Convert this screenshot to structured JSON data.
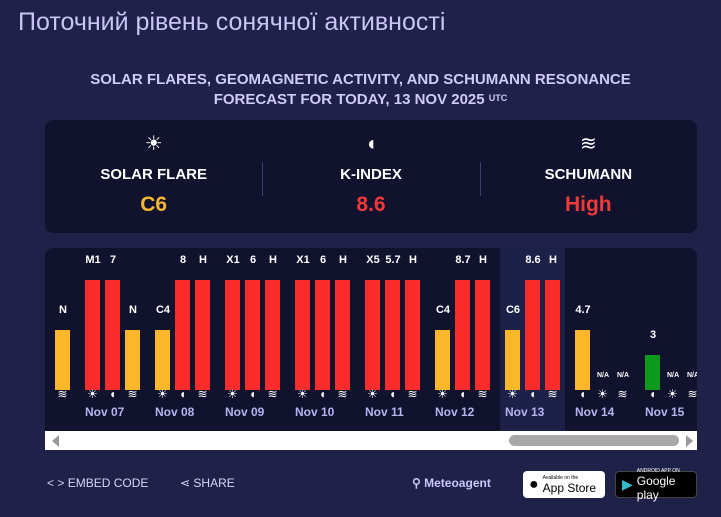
{
  "title": "Поточний рівень сонячної активності",
  "subtitle": {
    "line1": "SOLAR FLARES, GEOMAGNETIC ACTIVITY, AND SCHUMANN RESONANCE",
    "line2": "FORECAST FOR TODAY, 13 NOV 2025",
    "tz": "UTC"
  },
  "colors": {
    "high": "#fb2c2c",
    "medium": "#fbb72a",
    "low": "#0a9a1c",
    "value_yellow": "#f5b731",
    "value_red": "#f03a3a"
  },
  "summary": [
    {
      "icon": "sun-icon",
      "label": "SOLAR FLARE",
      "value": "C6",
      "color": "#f5b731"
    },
    {
      "icon": "magnet-icon",
      "label": "K-INDEX",
      "value": "8.6",
      "color": "#f03a3a"
    },
    {
      "icon": "waves-icon",
      "label": "SCHUMANN",
      "value": "High",
      "color": "#f03a3a"
    }
  ],
  "days": [
    {
      "date": "",
      "bars": [
        {
          "type": "",
          "label": ""
        },
        {
          "type": "",
          "label": ""
        },
        {
          "type": "schumann",
          "label": "N",
          "level": "medium"
        }
      ]
    },
    {
      "date": "Nov 07",
      "bars": [
        {
          "type": "flare",
          "label": "M1",
          "level": "high"
        },
        {
          "type": "kindex",
          "label": "7",
          "level": "high"
        },
        {
          "type": "schumann",
          "label": "N",
          "level": "medium"
        }
      ]
    },
    {
      "date": "Nov 08",
      "bars": [
        {
          "type": "flare",
          "label": "C4",
          "level": "medium"
        },
        {
          "type": "kindex",
          "label": "8",
          "level": "high"
        },
        {
          "type": "schumann",
          "label": "H",
          "level": "high"
        }
      ]
    },
    {
      "date": "Nov 09",
      "bars": [
        {
          "type": "flare",
          "label": "X1",
          "level": "high"
        },
        {
          "type": "kindex",
          "label": "6",
          "level": "high"
        },
        {
          "type": "schumann",
          "label": "H",
          "level": "high"
        }
      ]
    },
    {
      "date": "Nov 10",
      "bars": [
        {
          "type": "flare",
          "label": "X1",
          "level": "high"
        },
        {
          "type": "kindex",
          "label": "6",
          "level": "high"
        },
        {
          "type": "schumann",
          "label": "H",
          "level": "high"
        }
      ]
    },
    {
      "date": "Nov 11",
      "bars": [
        {
          "type": "flare",
          "label": "X5",
          "level": "high"
        },
        {
          "type": "kindex",
          "label": "5.7",
          "level": "high"
        },
        {
          "type": "schumann",
          "label": "H",
          "level": "high"
        }
      ]
    },
    {
      "date": "Nov 12",
      "bars": [
        {
          "type": "flare",
          "label": "C4",
          "level": "medium"
        },
        {
          "type": "kindex",
          "label": "8.7",
          "level": "high"
        },
        {
          "type": "schumann",
          "label": "H",
          "level": "high"
        }
      ]
    },
    {
      "date": "Nov 13",
      "today": true,
      "bars": [
        {
          "type": "flare",
          "label": "C6",
          "level": "medium"
        },
        {
          "type": "kindex",
          "label": "8.6",
          "level": "high"
        },
        {
          "type": "schumann",
          "label": "H",
          "level": "high"
        }
      ]
    },
    {
      "date": "Nov 14",
      "bars": [
        {
          "type": "kindex",
          "label": "4.7",
          "level": "medium"
        },
        {
          "type": "flare",
          "label": "N/A",
          "level": "none"
        },
        {
          "type": "schumann",
          "label": "N/A",
          "level": "none"
        }
      ]
    },
    {
      "date": "Nov 15",
      "bars": [
        {
          "type": "kindex",
          "label": "3",
          "level": "low"
        },
        {
          "type": "flare",
          "label": "N/A",
          "level": "none"
        },
        {
          "type": "schumann",
          "label": "N/A",
          "level": "none"
        }
      ]
    }
  ],
  "footer": {
    "embed": "EMBED CODE",
    "share": "SHARE",
    "brand": "Meteoagent",
    "appstore_small": "Available on the",
    "appstore": "App Store",
    "gplay_small": "ANDROID APP ON",
    "gplay": "Google play"
  }
}
